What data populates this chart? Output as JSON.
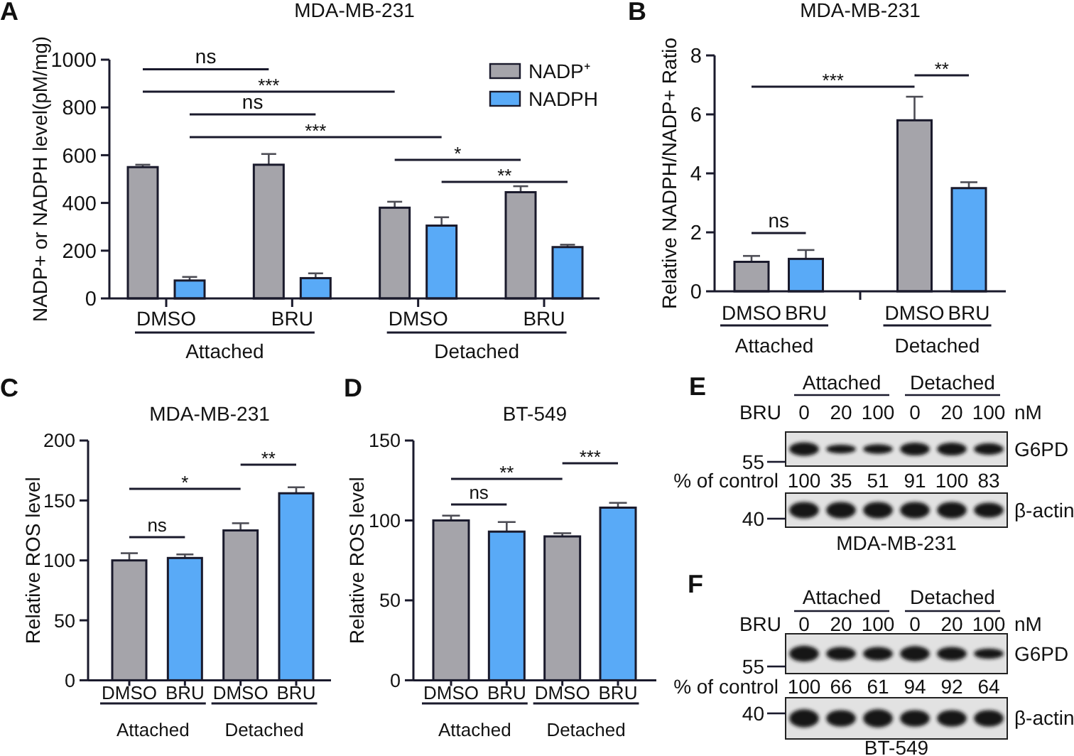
{
  "chart_data": [
    {
      "type": "bar",
      "title": "MDA-MB-231",
      "ylabel": "NADP+ or NADPH level(pM/mg)",
      "categories": [
        "DMSO",
        "BRU",
        "DMSO",
        "BRU"
      ],
      "series": [
        {
          "name": "NADP⁺",
          "color": "#a5a4aa",
          "values": [
            550,
            560,
            380,
            445
          ],
          "errors": [
            10,
            45,
            25,
            25
          ]
        },
        {
          "name": "NADPH",
          "color": "#59aaf7",
          "values": [
            75,
            85,
            305,
            215
          ],
          "errors": [
            15,
            20,
            35,
            10
          ]
        }
      ],
      "ylim": [
        0,
        1000
      ],
      "yticks": [
        0,
        200,
        400,
        600,
        800,
        1000
      ],
      "legend": "top right",
      "annotations": [
        "A",
        "ns",
        "***",
        "ns",
        "***",
        "*",
        "**",
        "Attached",
        "Detached"
      ]
    },
    {
      "type": "bar",
      "title": "MDA-MB-231",
      "ylabel": "Relative NADPH/NADP+ Ratio",
      "categories": [
        "DMSO",
        "BRU",
        null,
        "DMSO",
        "BRU"
      ],
      "values": [
        1.0,
        1.1,
        null,
        5.8,
        3.5
      ],
      "colors": [
        "#a5a4aa",
        "#59aaf7",
        null,
        "#a5a4aa",
        "#59aaf7"
      ],
      "errors": [
        0.2,
        0.3,
        null,
        0.8,
        0.2
      ],
      "ylim": [
        0,
        8
      ],
      "yticks": [
        0,
        2,
        4,
        6,
        8
      ],
      "annotations": [
        "B",
        "***",
        "**",
        "ns",
        "Attached",
        "Detached"
      ]
    },
    {
      "type": "bar",
      "title": "MDA-MB-231",
      "ylabel": "Relative ROS level",
      "categories": [
        "DMSO",
        "BRU",
        "DMSO",
        "BRU"
      ],
      "values": [
        100,
        102,
        125,
        156
      ],
      "colors": [
        "#a5a4aa",
        "#59aaf7",
        "#a5a4aa",
        "#59aaf7"
      ],
      "errors": [
        6,
        3,
        6,
        5
      ],
      "ylim": [
        0,
        200
      ],
      "yticks": [
        0,
        50,
        100,
        150,
        200
      ],
      "annotations": [
        "C",
        "ns",
        "*",
        "**",
        "Attached",
        "Detached"
      ]
    },
    {
      "type": "bar",
      "title": "BT-549",
      "ylabel": "Relative ROS level",
      "categories": [
        "DMSO",
        "BRU",
        "DMSO",
        "BRU"
      ],
      "values": [
        100,
        93,
        90,
        108
      ],
      "colors": [
        "#a5a4aa",
        "#59aaf7",
        "#a5a4aa",
        "#59aaf7"
      ],
      "errors": [
        3,
        6,
        2,
        3
      ],
      "ylim": [
        0,
        150
      ],
      "yticks": [
        0,
        50,
        100,
        150
      ],
      "annotations": [
        "D",
        "ns",
        "**",
        "***",
        "Attached",
        "Detached"
      ]
    },
    {
      "type": "other",
      "title": "MDA-MB-231",
      "categories": [
        "0",
        "20",
        "100",
        "0",
        "20",
        "100"
      ],
      "annotations": [
        "E",
        "Attached",
        "Detached",
        "BRU",
        "nM",
        "G6PD",
        "β-actin",
        "55",
        "40"
      ]
    },
    {
      "type": "other",
      "categories": [
        null,
        null,
        null,
        null,
        null,
        null
      ],
      "values": [
        100,
        35,
        51,
        91,
        100,
        83
      ],
      "data_labels": true,
      "annotations": [
        "% of control"
      ]
    },
    {
      "type": "other",
      "title": "BT-549",
      "categories": [
        "0",
        "20",
        "100",
        "0",
        "20",
        "100"
      ],
      "annotations": [
        "F",
        "Attached",
        "Detached",
        "BRU",
        "nM",
        "G6PD",
        "β-actin",
        "55",
        "40"
      ]
    },
    {
      "type": "other",
      "categories": [
        null,
        null,
        null,
        null,
        null,
        null
      ],
      "values": [
        100,
        66,
        61,
        94,
        92,
        64
      ],
      "data_labels": true,
      "annotations": [
        "% of control"
      ]
    }
  ]
}
